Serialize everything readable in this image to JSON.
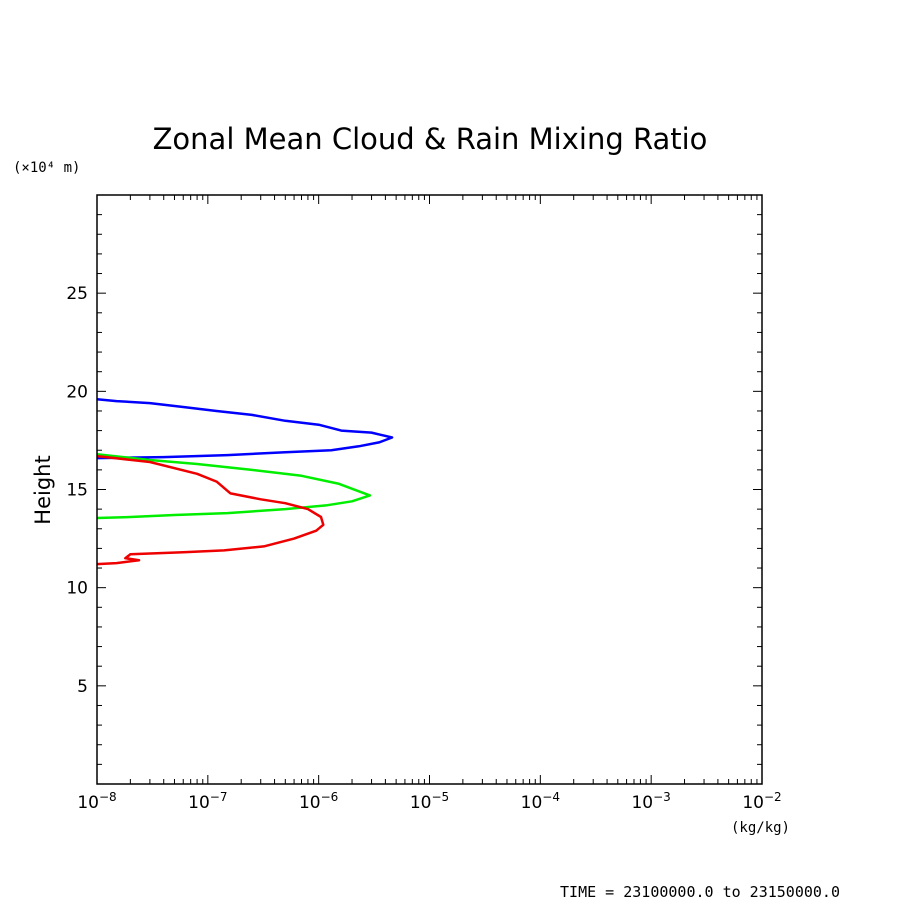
{
  "chart_data": {
    "type": "line",
    "title": "Zonal Mean Cloud & Rain Mixing Ratio",
    "y_unit": "(×10⁴ m)",
    "ylabel": "Height",
    "x_unit": "(kg/kg)",
    "footer": "TIME = 23100000.0 to 23150000.0",
    "x_scale": "log",
    "xlim": [
      1e-08,
      0.01
    ],
    "ylim": [
      0,
      30
    ],
    "x_ticks": [
      {
        "base": "10",
        "exp": "−8"
      },
      {
        "base": "10",
        "exp": "−7"
      },
      {
        "base": "10",
        "exp": "−6"
      },
      {
        "base": "10",
        "exp": "−5"
      },
      {
        "base": "10",
        "exp": "−4"
      },
      {
        "base": "10",
        "exp": "−3"
      },
      {
        "base": "10",
        "exp": "−2"
      }
    ],
    "y_ticks": [
      "5",
      "10",
      "15",
      "20",
      "25"
    ],
    "grid": false,
    "series": [
      {
        "color": "#0000ff",
        "points": [
          [
            1e-08,
            19.6
          ],
          [
            1.5e-08,
            19.5
          ],
          [
            3e-08,
            19.4
          ],
          [
            6e-08,
            19.2
          ],
          [
            1.2e-07,
            19.0
          ],
          [
            2.5e-07,
            18.8
          ],
          [
            5e-07,
            18.5
          ],
          [
            1e-06,
            18.3
          ],
          [
            1.6e-06,
            18.0
          ],
          [
            3e-06,
            17.9
          ],
          [
            4.6e-06,
            17.65
          ],
          [
            3.5e-06,
            17.4
          ],
          [
            2.3e-06,
            17.2
          ],
          [
            1.3e-06,
            17.0
          ],
          [
            5e-07,
            16.9
          ],
          [
            1.5e-07,
            16.75
          ],
          [
            4e-08,
            16.65
          ],
          [
            1e-08,
            16.6
          ]
        ]
      },
      {
        "color": "#00ee00",
        "points": [
          [
            1e-08,
            16.8
          ],
          [
            3e-08,
            16.5
          ],
          [
            8e-08,
            16.3
          ],
          [
            2.5e-07,
            16.0
          ],
          [
            7e-07,
            15.7
          ],
          [
            1.5e-06,
            15.3
          ],
          [
            2.9e-06,
            14.7
          ],
          [
            2e-06,
            14.4
          ],
          [
            1.2e-06,
            14.2
          ],
          [
            5e-07,
            14.0
          ],
          [
            1.5e-07,
            13.8
          ],
          [
            5e-08,
            13.7
          ],
          [
            2e-08,
            13.6
          ],
          [
            1e-08,
            13.55
          ]
        ]
      },
      {
        "color": "#ee0000",
        "points": [
          [
            1e-08,
            16.7
          ],
          [
            3e-08,
            16.4
          ],
          [
            8e-08,
            15.8
          ],
          [
            1.2e-07,
            15.4
          ],
          [
            1.6e-07,
            14.8
          ],
          [
            3e-07,
            14.5
          ],
          [
            5e-07,
            14.3
          ],
          [
            8e-07,
            14.0
          ],
          [
            1.05e-06,
            13.6
          ],
          [
            1.1e-06,
            13.2
          ],
          [
            9.5e-07,
            12.9
          ],
          [
            6e-07,
            12.5
          ],
          [
            3.2e-07,
            12.1
          ],
          [
            1.4e-07,
            11.9
          ],
          [
            6e-08,
            11.8
          ],
          [
            2e-08,
            11.7
          ],
          [
            1.8e-08,
            11.5
          ],
          [
            2.4e-08,
            11.4
          ],
          [
            1.5e-08,
            11.25
          ],
          [
            1e-08,
            11.2
          ]
        ]
      }
    ]
  }
}
